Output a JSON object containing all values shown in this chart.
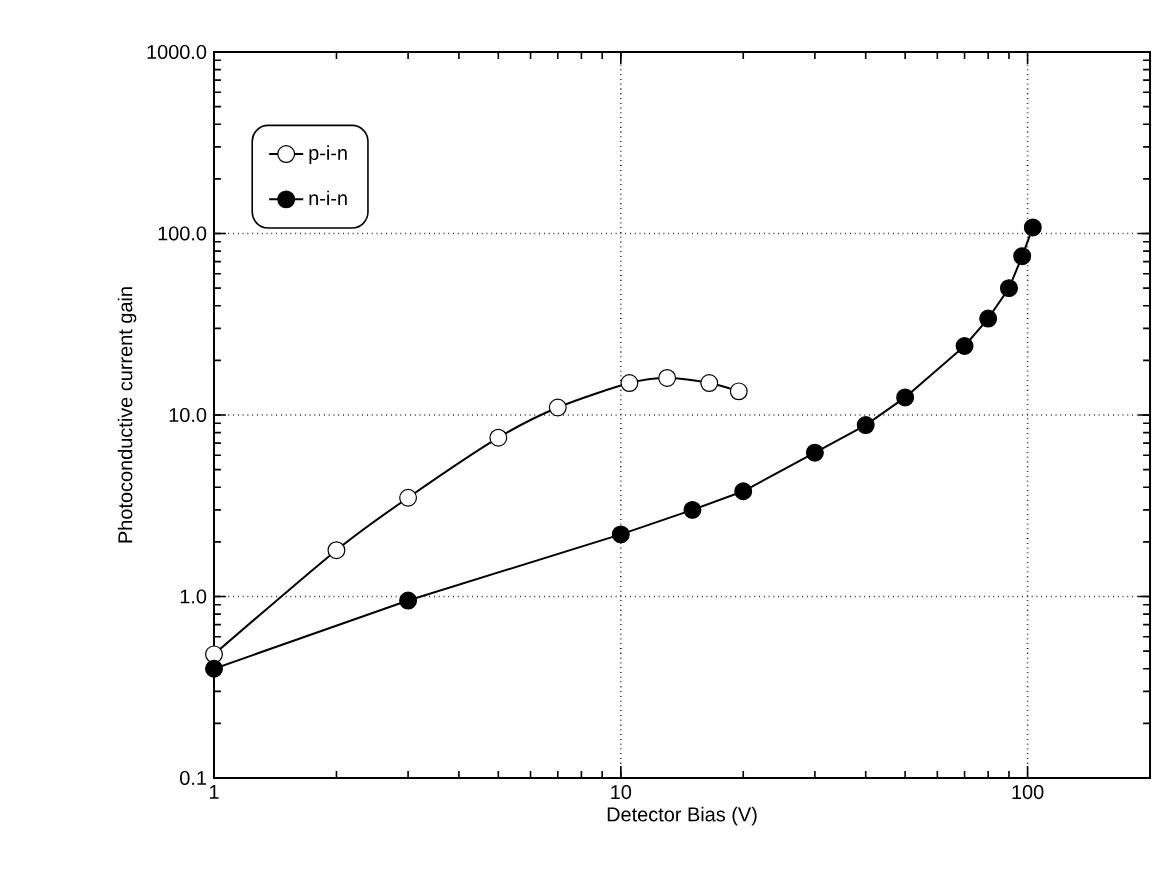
{
  "chart_data": {
    "type": "line",
    "xlabel": "Detector Bias (V)",
    "ylabel": "Photoconductive current gain",
    "log": "xy",
    "xlim": [
      1,
      200
    ],
    "ylim": [
      0.1,
      1000
    ],
    "xticks": [
      1,
      10,
      100
    ],
    "yticks": [
      {
        "value": 0.1,
        "label": "0.1"
      },
      {
        "value": 1,
        "label": "1.0"
      },
      {
        "value": 10,
        "label": "10.0"
      },
      {
        "value": 100,
        "label": "100.0"
      },
      {
        "value": 1000,
        "label": "1000.0"
      }
    ],
    "grid": true,
    "legend": "top left",
    "marker": "circle",
    "line_style": "solid",
    "series": [
      {
        "name": "p-i-n",
        "color": "#000000",
        "x": [
          1,
          2,
          3,
          5,
          7,
          10.5,
          13,
          16.5,
          19.5
        ],
        "values": [
          0.48,
          1.8,
          3.5,
          7.5,
          11,
          15,
          16,
          15,
          13.5
        ]
      },
      {
        "name": "n-i-n",
        "color": "#000000",
        "x": [
          1,
          3,
          10,
          15,
          20,
          30,
          40,
          50,
          70,
          80,
          90,
          97,
          103
        ],
        "values": [
          0.4,
          0.95,
          2.2,
          3.0,
          3.8,
          6.2,
          8.8,
          12.5,
          24,
          34,
          50,
          75,
          108
        ]
      }
    ]
  }
}
